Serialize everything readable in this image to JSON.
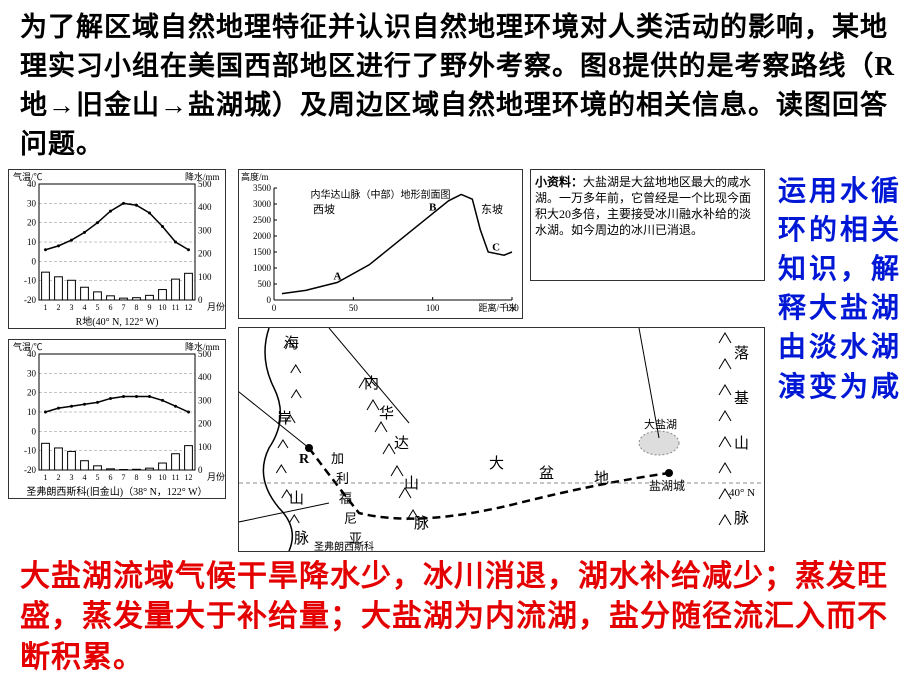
{
  "top_paragraph": "为了解区域自然地理特征并认识自然地理环境对人类活动的影响，某地理实习小组在美国西部地区进行了野外考察。图8提供的是考察路线（R地→旧金山→盐湖城）及周边区域自然地理环境的相关信息。读图回答问题。",
  "blue_side_text": "运用水循环的相关知识，解释大盐湖由淡水湖演变为咸",
  "red_bottom_text": "大盐湖流域气候干旱降水少，冰川消退，湖水补给减少；蒸发旺盛，蒸发量大于补给量；大盐湖为内流湖，盐分随径流汇入而不断积累。",
  "chart1": {
    "type": "climograph",
    "temp_label": "气温/℃",
    "precip_label": "降水/mm",
    "x_label": "月份",
    "caption": "R地(40° N, 122° W)",
    "temp_range": [
      -20,
      40
    ],
    "temp_ticks": [
      -20,
      -10,
      0,
      10,
      20,
      30,
      40
    ],
    "precip_range": [
      0,
      500
    ],
    "precip_ticks": [
      0,
      100,
      200,
      300,
      400,
      500
    ],
    "months": [
      1,
      2,
      3,
      4,
      5,
      6,
      7,
      8,
      9,
      10,
      11,
      12
    ],
    "temp_values": [
      6,
      8,
      11,
      15,
      20,
      26,
      30,
      29,
      25,
      18,
      10,
      6
    ],
    "precip_values": [
      120,
      100,
      85,
      55,
      35,
      18,
      8,
      10,
      20,
      45,
      90,
      115
    ],
    "temp_color": "#000000",
    "bar_color": "#ffffff",
    "bar_stroke": "#000000",
    "grid_color": "#888888",
    "axis_fontsize": 9
  },
  "chart2": {
    "type": "climograph",
    "temp_label": "气温/℃",
    "precip_label": "降水/mm",
    "x_label": "月份",
    "caption": "圣弗朗西斯科(旧金山)（38° N，122° W）",
    "temp_range": [
      -20,
      40
    ],
    "temp_ticks": [
      -20,
      -10,
      0,
      10,
      20,
      30,
      40
    ],
    "precip_range": [
      0,
      500
    ],
    "precip_ticks": [
      0,
      100,
      200,
      300,
      400,
      500
    ],
    "months": [
      1,
      2,
      3,
      4,
      5,
      6,
      7,
      8,
      9,
      10,
      11,
      12
    ],
    "temp_values": [
      10,
      12,
      13,
      14,
      15,
      17,
      18,
      18,
      18,
      16,
      13,
      10
    ],
    "precip_values": [
      115,
      95,
      80,
      40,
      18,
      5,
      2,
      3,
      8,
      30,
      70,
      105
    ],
    "temp_color": "#000000",
    "bar_color": "#ffffff",
    "bar_stroke": "#000000",
    "grid_color": "#888888",
    "axis_fontsize": 9
  },
  "profile": {
    "type": "line",
    "title": "内华达山脉（中部）地形剖面图",
    "y_label": "高度/m",
    "x_label": "距离/千米",
    "left_label": "西坡",
    "right_label": "东坡",
    "y_range": [
      0,
      3500
    ],
    "y_ticks": [
      0,
      500,
      1000,
      1500,
      2000,
      2500,
      3000,
      3500
    ],
    "x_range": [
      0,
      150
    ],
    "x_ticks": [
      0,
      50,
      100,
      150
    ],
    "points": [
      [
        5,
        200
      ],
      [
        20,
        300
      ],
      [
        40,
        550
      ],
      [
        60,
        1100
      ],
      [
        80,
        1900
      ],
      [
        100,
        2700
      ],
      [
        110,
        3100
      ],
      [
        118,
        3300
      ],
      [
        125,
        3150
      ],
      [
        130,
        2200
      ],
      [
        135,
        1500
      ],
      [
        145,
        1400
      ],
      [
        150,
        1500
      ]
    ],
    "markers": {
      "A": [
        40,
        550
      ],
      "B": [
        100,
        2700
      ],
      "C": [
        140,
        1450
      ]
    },
    "line_color": "#000000",
    "grid_color": "#888888",
    "axis_fontsize": 9
  },
  "info_box": {
    "title": "小资料：",
    "text": "大盐湖是大盆地地区最大的咸水湖。一万多年前，它曾经是一个比现今面积大20多倍，主要接受冰川融水补给的淡水湖。如今周边的冰川已消退。"
  },
  "map": {
    "type": "map",
    "labels": {
      "hai": "海",
      "an": "岸",
      "shan1": "山",
      "mai1": "脉",
      "nei": "内",
      "hua": "华",
      "da": "达",
      "shan2": "山",
      "mai2": "脉",
      "jia": "加",
      "li": "利",
      "fu": "福",
      "ni": "尼",
      "ya": "亚",
      "da2": "大",
      "pen": "盆",
      "di": "地",
      "luo": "落",
      "ji": "基",
      "shan3": "山",
      "mai3": "脉",
      "R": "R",
      "salt_lake": "大盐湖",
      "salt_city": "盐湖城",
      "lat": "40° N",
      "sf": "圣弗朗西斯科"
    },
    "route_color": "#000000",
    "coast_color": "#000000",
    "lake_color": "#cccccc"
  }
}
